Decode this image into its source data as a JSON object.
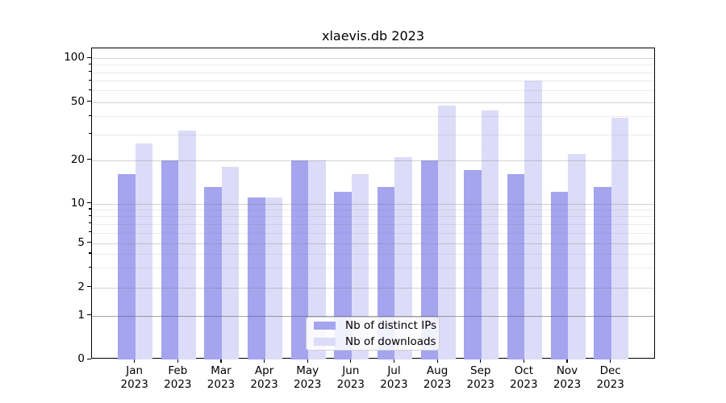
{
  "chart_data": {
    "type": "bar",
    "title": "xlaevis.db 2023",
    "months": [
      "Jan",
      "Feb",
      "Mar",
      "Apr",
      "May",
      "Jun",
      "Jul",
      "Aug",
      "Sep",
      "Oct",
      "Nov",
      "Dec"
    ],
    "year": "2023",
    "series": [
      {
        "name": "Nb of distinct IPs",
        "key": "distinct-ips",
        "color": "#a4a4ef",
        "values": [
          16,
          20,
          13,
          11,
          20,
          12,
          13,
          20,
          17,
          16,
          12,
          13
        ]
      },
      {
        "name": "Nb of downloads",
        "key": "downloads",
        "color": "#dcdcf9",
        "values": [
          26,
          32,
          18,
          11,
          20,
          16,
          21,
          47,
          44,
          70,
          22,
          39
        ]
      }
    ],
    "y_axis": {
      "tick_values": [
        0,
        1,
        2,
        5,
        10,
        20,
        50,
        100
      ],
      "tick_labels": [
        "0",
        "1",
        "2",
        "5",
        "10",
        "20",
        "50",
        "100"
      ],
      "scale": "log-like",
      "ylim_top_approx": 116
    },
    "legend": {
      "position": "bottom-center"
    },
    "grid": "horizontal major and minor gridlines drawn over bars"
  }
}
